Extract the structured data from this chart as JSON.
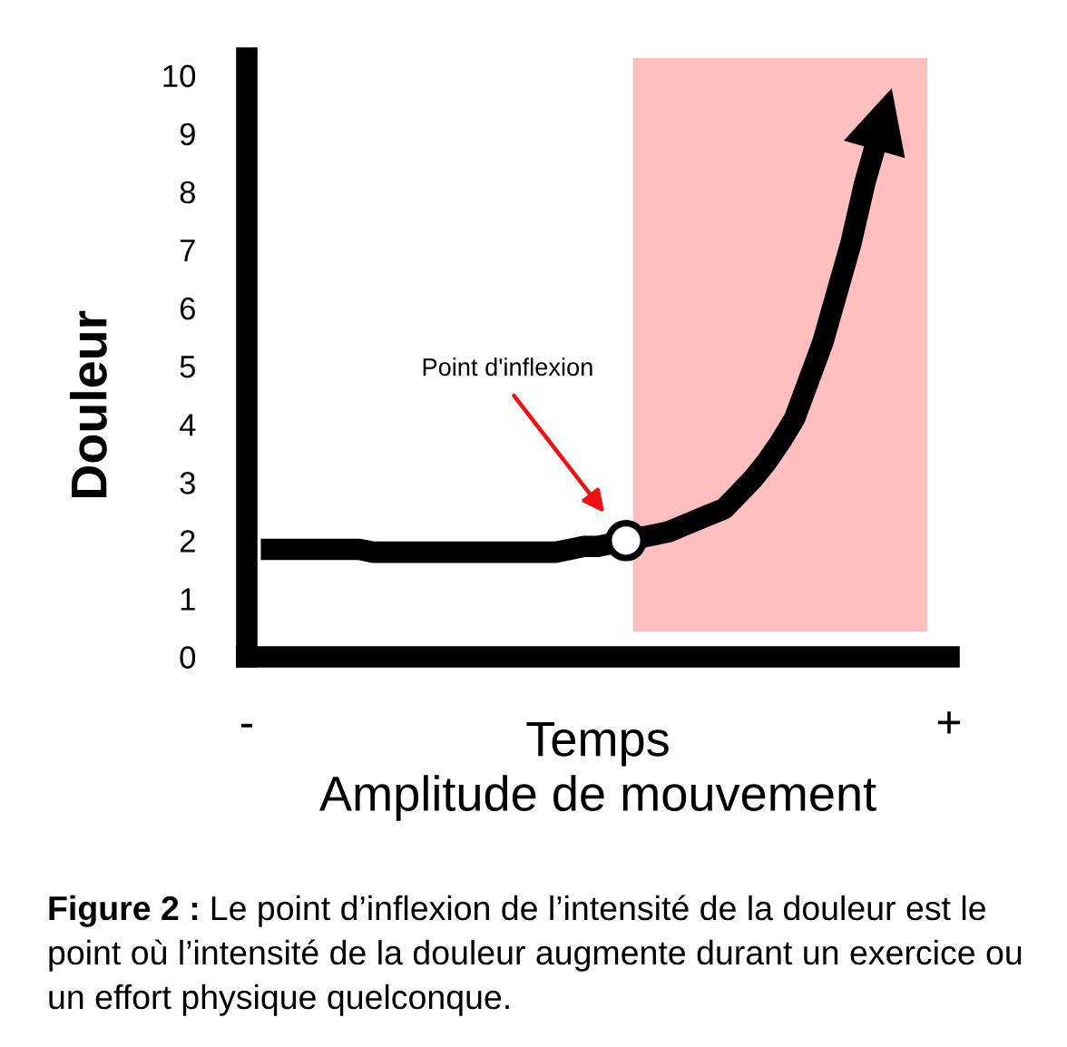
{
  "chart_data": {
    "type": "line",
    "xlabel": "Temps\nAmplitude de mouvement",
    "ylabel": "Douleur",
    "categories": [
      "-",
      null,
      null,
      null,
      null,
      null,
      null,
      null,
      null,
      null,
      null,
      null,
      null,
      null,
      null,
      null,
      null,
      null,
      null,
      null,
      null,
      null,
      null,
      null,
      null,
      null,
      null,
      null,
      null,
      null,
      null,
      null,
      null,
      null,
      null,
      null,
      null,
      null,
      null,
      null,
      null,
      null,
      null,
      null,
      null,
      null,
      null,
      null,
      null,
      null,
      "+"
    ],
    "ylim": [
      0,
      10.3
    ],
    "yticks": [
      0,
      1,
      2,
      3,
      4,
      5,
      6,
      7,
      8,
      9,
      10
    ],
    "series": [
      {
        "color": "#000000",
        "values": [
          null,
          1.85,
          1.85,
          1.85,
          1.85,
          1.85,
          1.85,
          1.85,
          1.85,
          1.8,
          1.8,
          1.8,
          1.8,
          1.8,
          1.8,
          1.8,
          1.8,
          1.8,
          1.8,
          1.8,
          1.8,
          1.8,
          1.8,
          1.85,
          1.9,
          1.9,
          1.95,
          2.0,
          2.05,
          2.1,
          2.15,
          2.25,
          2.35,
          2.45,
          2.55,
          2.8,
          3.05,
          3.35,
          3.7,
          4.1,
          4.75,
          5.4,
          6.25,
          7.1,
          8.15,
          9.0,
          null,
          null,
          null,
          null,
          null
        ]
      },
      {
        "type": "scatter",
        "color": "#ffffff",
        "marker": "circle",
        "values": [
          null,
          null,
          null,
          null,
          null,
          null,
          null,
          null,
          null,
          null,
          null,
          null,
          null,
          null,
          null,
          null,
          null,
          null,
          null,
          null,
          null,
          null,
          null,
          null,
          null,
          null,
          null,
          2.0,
          null,
          null,
          null,
          null,
          null,
          null,
          null,
          null,
          null,
          null,
          null,
          null,
          null,
          null,
          null,
          null,
          null,
          null,
          null,
          null,
          null,
          null,
          null
        ]
      }
    ],
    "annotations": [
      "Point d'inflexion",
      "Figure 2 : Le point d’inflexion de l’intensité de la douleur est le point où l’intensité de la douleur augmente durant un exercice ou un effort physique quelconque."
    ]
  }
}
